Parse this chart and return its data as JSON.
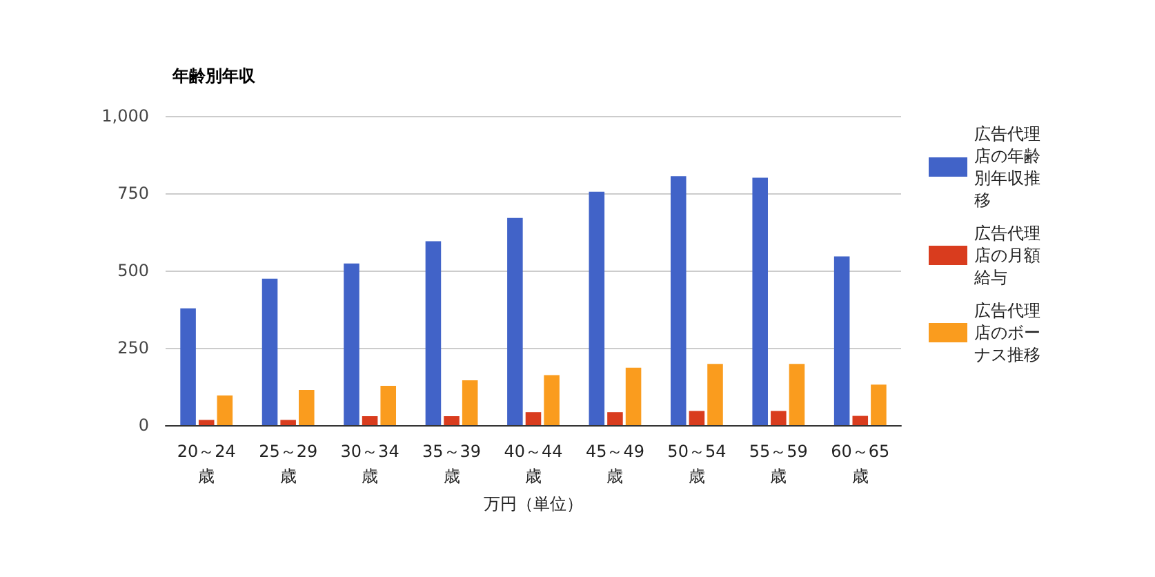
{
  "chart_data": {
    "type": "bar",
    "title": "年齢別年収",
    "xlabel": "万円（単位）",
    "categories": [
      "20～24歳",
      "25～29歳",
      "30～34歳",
      "35～39歳",
      "40～44歳",
      "45～49歳",
      "50～54歳",
      "55～59歳",
      "60～65歳"
    ],
    "series": [
      {
        "name": "広告代理店の年齢別年収推移",
        "color": "#4163c8",
        "values": [
          378,
          474,
          523,
          595,
          670,
          755,
          805,
          800,
          546
        ]
      },
      {
        "name": "広告代理店の月額給与",
        "color": "#d93c1e",
        "values": [
          17,
          17,
          29,
          29,
          42,
          42,
          46,
          46,
          30
        ]
      },
      {
        "name": "広告代理店のボーナス推移",
        "color": "#fa9c1e",
        "values": [
          96,
          114,
          127,
          145,
          162,
          186,
          198,
          198,
          131
        ]
      }
    ],
    "ylim": [
      0,
      1000
    ],
    "yticks": [
      0,
      250,
      500,
      750,
      {
        "value": 1000,
        "label": "1,000"
      }
    ],
    "grid": "y",
    "legend": "right"
  }
}
